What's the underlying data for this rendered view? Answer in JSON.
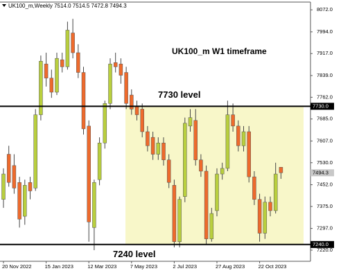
{
  "chart_data": {
    "type": "candlestick",
    "header": "UK100_m,Weekly  7514.0 7514.5 7472.8 7494.3",
    "title": "UK100_m W1 timeframe",
    "categories": [
      "20 Nov 2022",
      null,
      null,
      null,
      null,
      null,
      null,
      null,
      "15 Jan 2023",
      null,
      null,
      null,
      null,
      null,
      null,
      null,
      "12 Mar 2023",
      null,
      null,
      null,
      null,
      null,
      null,
      null,
      "7 May 2023",
      null,
      null,
      null,
      null,
      null,
      null,
      null,
      "2 Jul 2023",
      null,
      null,
      null,
      null,
      null,
      null,
      null,
      "27 Aug 2023",
      null,
      null,
      null,
      null,
      null,
      null,
      null,
      "22 Oct 2023",
      null,
      null,
      null,
      null
    ],
    "open": [
      7400,
      7560,
      7520,
      7460,
      7340,
      7460,
      7440,
      7700,
      7880,
      7830,
      7780,
      7895,
      7870,
      7990,
      7920,
      7850,
      7660,
      7300,
      7470,
      7600,
      7740,
      7885,
      7880,
      7850,
      7770,
      7730,
      7720,
      7640,
      7620,
      7560,
      7600,
      7540,
      7450,
      7250,
      7410,
      7660,
      7680,
      7540,
      7500,
      7260,
      7360,
      7490,
      7510,
      7700,
      7660,
      7590,
      7640,
      7480,
      7400,
      7280,
      7390,
      7360,
      7514.0
    ],
    "high": [
      7510,
      7590,
      7560,
      7480,
      7470,
      7480,
      7720,
      7910,
      7920,
      7860,
      7920,
      7920,
      8030,
      8040,
      7950,
      7870,
      7680,
      7470,
      7620,
      7750,
      7900,
      7920,
      7900,
      7870,
      7790,
      7750,
      7740,
      7660,
      7640,
      7620,
      7620,
      7560,
      7470,
      7410,
      7690,
      7720,
      7720,
      7560,
      7520,
      7370,
      7510,
      7530,
      7750,
      7740,
      7680,
      7660,
      7660,
      7500,
      7420,
      7410,
      7410,
      7530,
      7514.5
    ],
    "low": [
      7370,
      7445,
      7420,
      7300,
      7310,
      7400,
      7430,
      7680,
      7800,
      7760,
      7770,
      7850,
      7860,
      7900,
      7830,
      7630,
      7250,
      7220,
      7450,
      7580,
      7720,
      7850,
      7810,
      7720,
      7700,
      7680,
      7620,
      7570,
      7540,
      7540,
      7520,
      7440,
      7230,
      7230,
      7390,
      7640,
      7520,
      7480,
      7240,
      7250,
      7340,
      7470,
      7500,
      7640,
      7570,
      7570,
      7460,
      7380,
      7250,
      7260,
      7340,
      7350,
      7472.8
    ],
    "close": [
      7490,
      7460,
      7440,
      7330,
      7450,
      7430,
      7700,
      7890,
      7830,
      7780,
      7900,
      7870,
      8000,
      7920,
      7850,
      7650,
      7320,
      7460,
      7600,
      7740,
      7880,
      7870,
      7840,
      7740,
      7720,
      7700,
      7640,
      7590,
      7560,
      7600,
      7540,
      7460,
      7250,
      7400,
      7670,
      7690,
      7540,
      7500,
      7260,
      7350,
      7490,
      7510,
      7700,
      7660,
      7590,
      7640,
      7480,
      7400,
      7280,
      7390,
      7360,
      7490,
      7494.3
    ],
    "up_color": "#b9cf3e",
    "down_color": "#ee6a2c",
    "ylim": [
      7183,
      8097
    ],
    "yticks": [
      {
        "value": 8072,
        "label": "8072.0"
      },
      {
        "value": 7994,
        "label": "7994.0"
      },
      {
        "value": 7917,
        "label": "7917.0"
      },
      {
        "value": 7839,
        "label": "7839.0"
      },
      {
        "value": 7762,
        "label": "7762.0"
      },
      {
        "value": 7685,
        "label": "7685.0"
      },
      {
        "value": 7607,
        "label": "7607.0"
      },
      {
        "value": 7530,
        "label": "7530.0"
      },
      {
        "value": 7452,
        "label": "7452.0"
      },
      {
        "value": 7375,
        "label": "7375.0"
      },
      {
        "value": 7297,
        "label": "7297.0"
      },
      {
        "value": 7220,
        "label": "7220.0"
      }
    ],
    "levels": [
      {
        "value": 7730,
        "label": "7730.0",
        "text": "7730 level"
      },
      {
        "value": 7240,
        "label": "7240.0",
        "text": "7240 level"
      }
    ],
    "last_price": {
      "value": 7494.3,
      "label": "7494.3"
    },
    "zone_color": "#f8f7c9"
  }
}
